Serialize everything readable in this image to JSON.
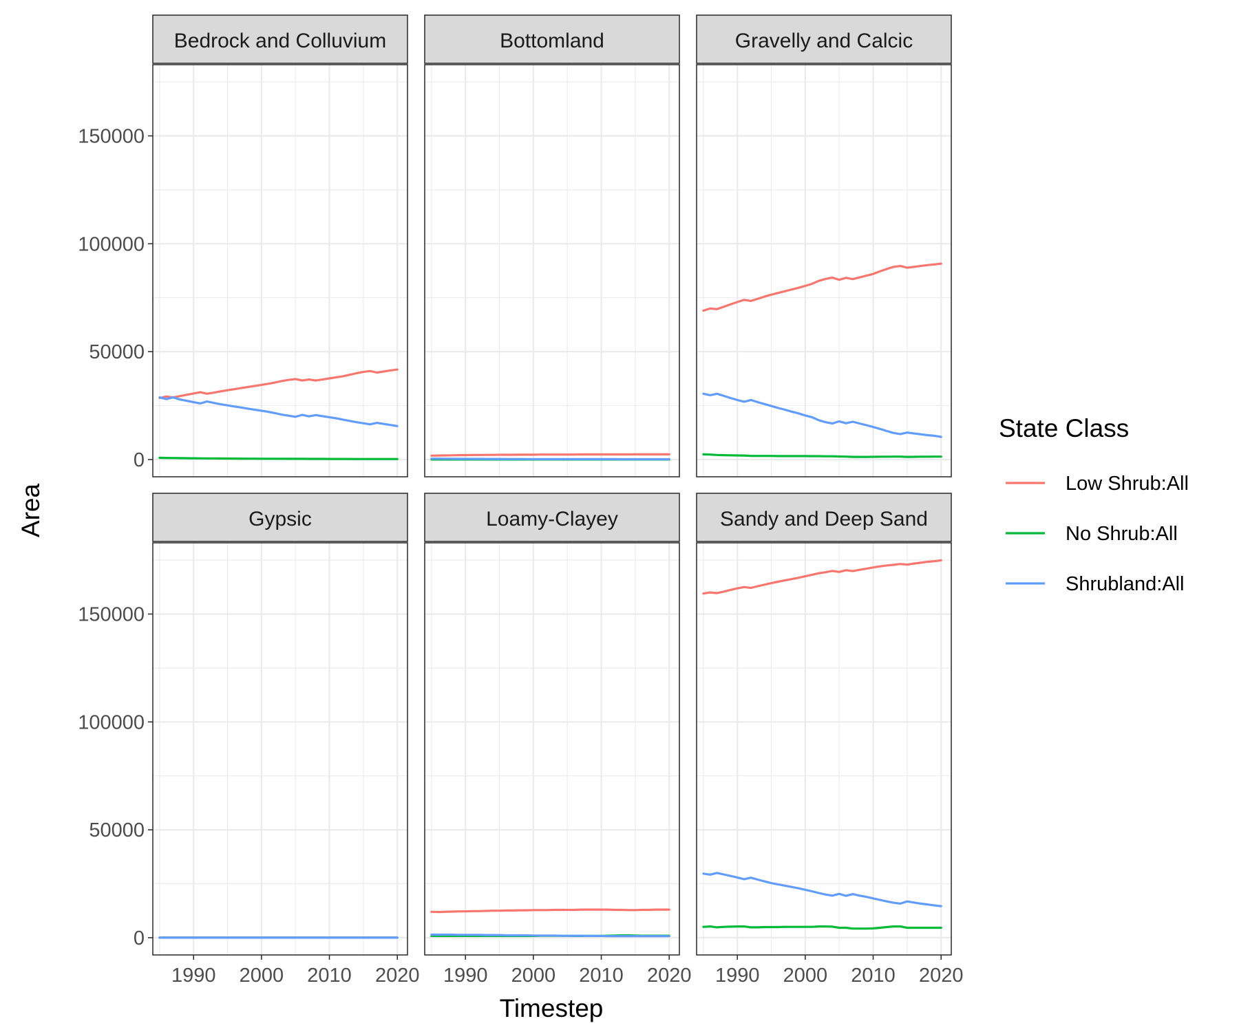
{
  "chart_data": {
    "type": "line",
    "xlabel": "Timestep",
    "ylabel": "Area",
    "xlim": [
      1984,
      2021.5
    ],
    "ylim": [
      -8000,
      183000
    ],
    "xticks": [
      1990,
      2000,
      2010,
      2020
    ],
    "yticks": [
      0,
      50000,
      100000,
      150000
    ],
    "grid": true,
    "legend": {
      "title": "State Class",
      "position": "right",
      "entries": [
        {
          "label": "Low Shrub:All",
          "color": "#F8766D"
        },
        {
          "label": "No Shrub:All",
          "color": "#00BA38"
        },
        {
          "label": "Shrubland:All",
          "color": "#619CFF"
        }
      ]
    },
    "x": [
      1985,
      1986,
      1987,
      1988,
      1989,
      1990,
      1991,
      1992,
      1993,
      1994,
      1995,
      1996,
      1997,
      1998,
      1999,
      2000,
      2001,
      2002,
      2003,
      2004,
      2005,
      2006,
      2007,
      2008,
      2009,
      2010,
      2011,
      2012,
      2013,
      2014,
      2015,
      2016,
      2017,
      2018,
      2019,
      2020
    ],
    "panels": [
      {
        "title": "Bedrock and Colluvium",
        "series": [
          {
            "name": "Low Shrub:All",
            "values": [
              28500,
              29200,
              28800,
              29400,
              30000,
              30600,
              31200,
              30500,
              31000,
              31600,
              32100,
              32600,
              33100,
              33600,
              34100,
              34600,
              35100,
              35700,
              36400,
              36900,
              37300,
              36600,
              37100,
              36600,
              37100,
              37600,
              38100,
              38600,
              39300,
              40000,
              40600,
              41000,
              40300,
              40800,
              41300,
              41700
            ]
          },
          {
            "name": "No Shrub:All",
            "values": [
              800,
              750,
              700,
              650,
              600,
              580,
              560,
              520,
              500,
              480,
              460,
              440,
              420,
              400,
              380,
              370,
              360,
              350,
              340,
              330,
              320,
              310,
              300,
              290,
              280,
              270,
              260,
              250,
              250,
              240,
              240,
              230,
              230,
              230,
              220,
              220
            ]
          },
          {
            "name": "Shrubland:All",
            "values": [
              28800,
              28000,
              28800,
              27800,
              27200,
              26600,
              26000,
              26900,
              26200,
              25600,
              25100,
              24600,
              24100,
              23600,
              23100,
              22600,
              22100,
              21500,
              20800,
              20300,
              19800,
              20700,
              20000,
              20600,
              20100,
              19600,
              19100,
              18500,
              17900,
              17300,
              16800,
              16300,
              17000,
              16500,
              16000,
              15500
            ]
          }
        ]
      },
      {
        "title": "Bottomland",
        "series": [
          {
            "name": "Low Shrub:All",
            "values": [
              1800,
              1850,
              1900,
              1950,
              2000,
              2050,
              2100,
              2100,
              2150,
              2150,
              2200,
              2200,
              2200,
              2250,
              2250,
              2250,
              2300,
              2300,
              2300,
              2300,
              2300,
              2300,
              2350,
              2350,
              2350,
              2350,
              2350,
              2350,
              2350,
              2350,
              2400,
              2400,
              2400,
              2400,
              2400,
              2400
            ]
          },
          {
            "name": "No Shrub:All",
            "values": [
              0,
              0,
              0,
              0,
              0,
              0,
              0,
              0,
              0,
              0,
              0,
              0,
              0,
              0,
              0,
              0,
              0,
              0,
              0,
              0,
              0,
              0,
              0,
              0,
              0,
              0,
              0,
              0,
              0,
              0,
              0,
              0,
              0,
              0,
              0,
              0
            ]
          },
          {
            "name": "Shrubland:All",
            "values": [
              400,
              380,
              360,
              340,
              320,
              300,
              290,
              280,
              270,
              260,
              250,
              240,
              230,
              220,
              210,
              200,
              200,
              190,
              190,
              180,
              180,
              170,
              170,
              160,
              160,
              150,
              150,
              150,
              140,
              140,
              140,
              130,
              130,
              130,
              120,
              120
            ]
          }
        ]
      },
      {
        "title": "Gravelly and Calcic",
        "series": [
          {
            "name": "Low Shrub:All",
            "values": [
              69000,
              70000,
              69700,
              70800,
              71900,
              73000,
              74000,
              73500,
              74500,
              75500,
              76400,
              77200,
              78000,
              78800,
              79600,
              80500,
              81400,
              82800,
              83700,
              84300,
              83300,
              84200,
              83600,
              84400,
              85200,
              86000,
              87200,
              88300,
              89300,
              89700,
              88900,
              89300,
              89700,
              90100,
              90400,
              90800
            ]
          },
          {
            "name": "No Shrub:All",
            "values": [
              2400,
              2300,
              2100,
              2000,
              1950,
              1900,
              1850,
              1700,
              1650,
              1650,
              1650,
              1600,
              1600,
              1600,
              1600,
              1600,
              1550,
              1550,
              1500,
              1500,
              1400,
              1350,
              1200,
              1200,
              1200,
              1250,
              1300,
              1300,
              1350,
              1350,
              1200,
              1250,
              1300,
              1300,
              1350,
              1350
            ]
          },
          {
            "name": "Shrubland:All",
            "values": [
              30500,
              29800,
              30500,
              29500,
              28500,
              27600,
              26800,
              27600,
              26600,
              25700,
              24800,
              23900,
              23100,
              22200,
              21400,
              20400,
              19600,
              18200,
              17300,
              16700,
              17700,
              16800,
              17500,
              16700,
              15900,
              15100,
              14200,
              13200,
              12300,
              11800,
              12500,
              12100,
              11700,
              11300,
              11000,
              10500
            ]
          }
        ]
      },
      {
        "title": "Gypsic",
        "series": [
          {
            "name": "Low Shrub:All",
            "values": [
              0,
              0,
              0,
              0,
              0,
              0,
              0,
              0,
              0,
              0,
              0,
              0,
              0,
              0,
              0,
              0,
              0,
              0,
              0,
              0,
              0,
              0,
              0,
              0,
              0,
              0,
              0,
              0,
              0,
              0,
              0,
              0,
              0,
              0,
              0,
              0
            ]
          },
          {
            "name": "No Shrub:All",
            "values": [
              0,
              0,
              0,
              0,
              0,
              0,
              0,
              0,
              0,
              0,
              0,
              0,
              0,
              0,
              0,
              0,
              0,
              0,
              0,
              0,
              0,
              0,
              0,
              0,
              0,
              0,
              0,
              0,
              0,
              0,
              0,
              0,
              0,
              0,
              0,
              0
            ]
          },
          {
            "name": "Shrubland:All",
            "values": [
              0,
              0,
              0,
              0,
              0,
              0,
              0,
              0,
              0,
              0,
              0,
              0,
              0,
              0,
              0,
              0,
              0,
              0,
              0,
              0,
              0,
              0,
              0,
              0,
              0,
              0,
              0,
              0,
              0,
              0,
              0,
              0,
              0,
              0,
              0,
              0
            ]
          }
        ]
      },
      {
        "title": "Loamy-Clayey",
        "series": [
          {
            "name": "Low Shrub:All",
            "values": [
              12000,
              11900,
              12000,
              12100,
              12200,
              12200,
              12300,
              12300,
              12400,
              12500,
              12500,
              12600,
              12600,
              12700,
              12700,
              12800,
              12800,
              12800,
              12900,
              12900,
              12900,
              12900,
              13000,
              13000,
              13000,
              13000,
              13000,
              12900,
              12900,
              12800,
              12800,
              12900,
              12900,
              13000,
              13000,
              13000
            ]
          },
          {
            "name": "No Shrub:All",
            "values": [
              800,
              800,
              800,
              800,
              800,
              800,
              800,
              800,
              800,
              800,
              800,
              800,
              800,
              800,
              800,
              800,
              900,
              900,
              900,
              900,
              900,
              800,
              800,
              800,
              800,
              800,
              900,
              1000,
              1100,
              1100,
              1000,
              900,
              900,
              900,
              900,
              900
            ]
          },
          {
            "name": "Shrubland:All",
            "values": [
              1400,
              1400,
              1400,
              1400,
              1300,
              1300,
              1300,
              1300,
              1200,
              1200,
              1200,
              1100,
              1100,
              1100,
              1100,
              1000,
              1000,
              1000,
              1000,
              900,
              900,
              900,
              900,
              800,
              800,
              800,
              700,
              700,
              700,
              700,
              700,
              700,
              700,
              700,
              700,
              700
            ]
          }
        ]
      },
      {
        "title": "Sandy and Deep Sand",
        "series": [
          {
            "name": "Low Shrub:All",
            "values": [
              159500,
              160000,
              159700,
              160400,
              161200,
              161900,
              162500,
              162100,
              162900,
              163600,
              164300,
              165000,
              165600,
              166200,
              166800,
              167500,
              168200,
              168900,
              169400,
              170000,
              169500,
              170300,
              169900,
              170500,
              171000,
              171600,
              172100,
              172500,
              172800,
              173200,
              172900,
              173400,
              173800,
              174200,
              174500,
              174900
            ]
          },
          {
            "name": "No Shrub:All",
            "values": [
              5000,
              5200,
              4800,
              5000,
              5100,
              5200,
              5200,
              4800,
              4800,
              4900,
              4900,
              4900,
              5000,
              5000,
              5000,
              5000,
              5000,
              5200,
              5200,
              5100,
              4600,
              4600,
              4200,
              4200,
              4200,
              4300,
              4600,
              4900,
              5200,
              5200,
              4600,
              4600,
              4600,
              4600,
              4600,
              4600
            ]
          },
          {
            "name": "Shrubland:All",
            "values": [
              29700,
              29200,
              30000,
              29300,
              28600,
              27900,
              27100,
              27800,
              26900,
              26100,
              25300,
              24700,
              24100,
              23500,
              22900,
              22200,
              21500,
              20700,
              20000,
              19500,
              20300,
              19400,
              20200,
              19500,
              18900,
              18200,
              17500,
              16800,
              16200,
              15800,
              16800,
              16300,
              15800,
              15400,
              15000,
              14600
            ]
          }
        ]
      }
    ]
  }
}
